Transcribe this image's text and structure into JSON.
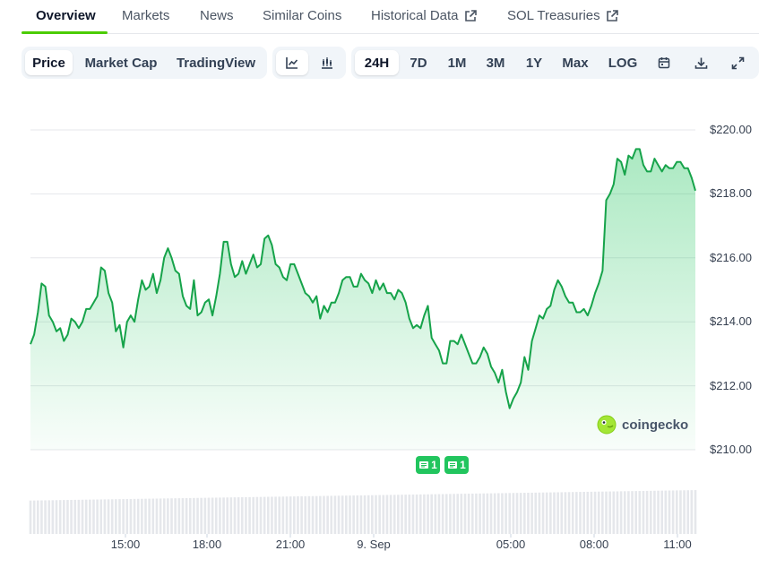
{
  "tabs": {
    "overview": "Overview",
    "markets": "Markets",
    "news": "News",
    "similar": "Similar Coins",
    "historical": "Historical Data",
    "treasuries": "SOL Treasuries"
  },
  "metric_buttons": {
    "price": "Price",
    "market_cap": "Market Cap",
    "tradingview": "TradingView"
  },
  "chart_type_icons": [
    "line-chart-icon",
    "candlestick-icon"
  ],
  "range_buttons": {
    "h24": "24H",
    "d7": "7D",
    "m1": "1M",
    "m3": "3M",
    "y1": "1Y",
    "max": "Max",
    "log": "LOG"
  },
  "tool_icons": [
    "calendar-icon",
    "download-icon",
    "fullscreen-icon"
  ],
  "watermark": "coingecko",
  "news_markers": [
    {
      "count": "1"
    },
    {
      "count": "1"
    }
  ],
  "colors": {
    "accent": "#4bcc00",
    "line": "#16a34a",
    "fill": "#22c55e",
    "marker": "#22c55e"
  },
  "chart_data": {
    "type": "area",
    "title": "",
    "xlabel": "",
    "ylabel": "",
    "ylim": [
      210,
      220
    ],
    "yticks": [
      "$220.00",
      "$218.00",
      "$216.00",
      "$214.00",
      "$212.00",
      "$210.00"
    ],
    "xticks": [
      "15:00",
      "18:00",
      "21:00",
      "9. Sep",
      "05:00",
      "08:00",
      "11:00"
    ],
    "grid": true,
    "series": [
      {
        "values": [
          213.3,
          213.6,
          214.3,
          215.2,
          215.1,
          214.2,
          214.0,
          213.7,
          213.8,
          213.4,
          213.6,
          214.1,
          214.0,
          213.8,
          214.0,
          214.4,
          214.4,
          214.6,
          214.8,
          215.7,
          215.6,
          214.9,
          214.6,
          213.7,
          213.9,
          213.2,
          214.0,
          214.2,
          214.0,
          214.7,
          215.3,
          215.0,
          215.1,
          215.5,
          214.9,
          215.3,
          216.0,
          216.3,
          216.0,
          215.6,
          215.5,
          214.8,
          214.5,
          214.4,
          215.3,
          214.2,
          214.3,
          214.6,
          214.7,
          214.2,
          214.8,
          215.5,
          216.5,
          216.5,
          215.8,
          215.4,
          215.5,
          215.9,
          215.5,
          215.8,
          216.1,
          215.7,
          215.8,
          216.6,
          216.7,
          216.4,
          215.8,
          215.7,
          215.4,
          215.3,
          215.8,
          215.8,
          215.5,
          215.2,
          214.9,
          214.8,
          214.6,
          214.8,
          214.1,
          214.5,
          214.3,
          214.6,
          214.6,
          214.9,
          215.3,
          215.4,
          215.4,
          215.1,
          215.1,
          215.5,
          215.3,
          215.2,
          214.9,
          215.3,
          215.0,
          215.2,
          214.9,
          214.9,
          214.7,
          215.0,
          214.9,
          214.6,
          214.1,
          213.8,
          213.9,
          213.8,
          214.2,
          214.5,
          213.5,
          213.3,
          213.1,
          212.7,
          212.7,
          213.4,
          213.4,
          213.3,
          213.6,
          213.3,
          213.0,
          212.7,
          212.7,
          212.9,
          213.2,
          213.0,
          212.6,
          212.4,
          212.1,
          212.5,
          211.8,
          211.3,
          211.6,
          211.8,
          212.1,
          212.9,
          212.5,
          213.4,
          213.8,
          214.2,
          214.1,
          214.4,
          214.5,
          215.0,
          215.3,
          215.1,
          214.8,
          214.6,
          214.6,
          214.3,
          214.3,
          214.4,
          214.2,
          214.5,
          214.9,
          215.2,
          215.6,
          217.8,
          218.0,
          218.3,
          219.1,
          219.0,
          218.6,
          219.2,
          219.1,
          219.4,
          219.4,
          218.9,
          218.7,
          218.7,
          219.1,
          218.9,
          218.7,
          218.9,
          218.8,
          218.8,
          219.0,
          219.0,
          218.8,
          218.8,
          218.5,
          218.1
        ]
      }
    ]
  }
}
